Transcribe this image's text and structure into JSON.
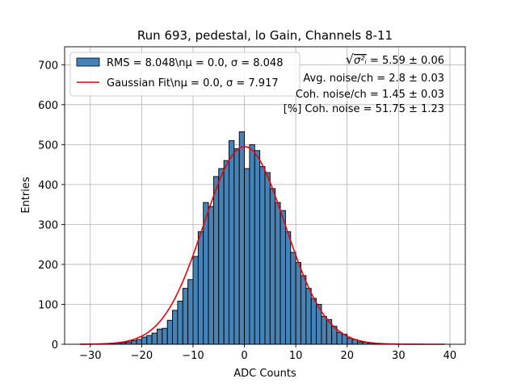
{
  "chart_data": {
    "type": "bar",
    "title": "Run 693, pedestal, lo Gain, Channels 8-11",
    "xlabel": "ADC Counts",
    "ylabel": "Entries",
    "xlim": [
      -35,
      43
    ],
    "ylim": [
      0,
      745
    ],
    "xticks": [
      -30,
      -20,
      -10,
      0,
      10,
      20,
      30,
      40
    ],
    "yticks": [
      0,
      100,
      200,
      300,
      400,
      500,
      600,
      700
    ],
    "grid": true,
    "legend_position": "top-left",
    "histogram": {
      "name": "RMS = 8.048\\n$\\mu$ = 0.0, $\\sigma$ = 8.048",
      "legend_label": "RMS = 8.048\\nμ = 0.0, σ = 8.048",
      "bin_width": 1,
      "x": [
        -32,
        -31,
        -30,
        -29,
        -28,
        -27,
        -26,
        -25,
        -24,
        -23,
        -22,
        -21,
        -20,
        -19,
        -18,
        -17,
        -16,
        -15,
        -14,
        -13,
        -12,
        -11,
        -10,
        -9,
        -8,
        -7,
        -6,
        -5,
        -4,
        -3,
        -2,
        -1,
        0,
        1,
        2,
        3,
        4,
        5,
        6,
        7,
        8,
        9,
        10,
        11,
        12,
        13,
        14,
        15,
        16,
        17,
        18,
        19,
        20,
        21,
        22,
        23,
        24,
        25,
        26,
        27,
        28,
        29,
        30,
        31,
        32,
        33,
        34,
        35,
        36,
        37,
        38,
        39
      ],
      "values": [
        0,
        0,
        0,
        0,
        1,
        1,
        2,
        3,
        4,
        6,
        9,
        12,
        18,
        22,
        28,
        38,
        40,
        60,
        85,
        108,
        140,
        162,
        220,
        282,
        355,
        345,
        420,
        440,
        460,
        510,
        490,
        532,
        440,
        500,
        485,
        445,
        430,
        390,
        355,
        335,
        282,
        230,
        205,
        172,
        140,
        115,
        100,
        70,
        62,
        45,
        30,
        25,
        15,
        12,
        6,
        5,
        3,
        2,
        1,
        1,
        0,
        0,
        0,
        0,
        0,
        0,
        0,
        0,
        0,
        0,
        0,
        0
      ],
      "color": "#4682b4",
      "edge_color": "#000000"
    },
    "fit": {
      "name": "Gaussian Fit\\n$\\mu$ = 0.0, $\\sigma$ = 7.917",
      "legend_label": "Gaussian Fit\\nμ = 0.0, σ = 7.917",
      "type": "gaussian",
      "mu": 0.0,
      "sigma": 7.917,
      "amplitude": 495,
      "x_range": [
        -32,
        39
      ],
      "color": "#e8000b"
    },
    "annotations": {
      "line1_prefix": "√",
      "line1_symbol": "σ²ᵢ",
      "line1_value": " = 5.59 ± 0.06",
      "line2": "Avg. noise/ch = 2.8 ± 0.03",
      "line3": "Coh. noise/ch = 1.45 ± 0.03",
      "line4": "[%] Coh. noise = 51.75 ± 1.23"
    }
  }
}
